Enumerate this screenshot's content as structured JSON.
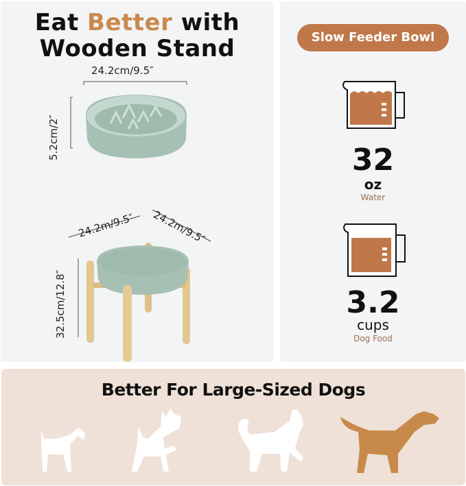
{
  "left_panel": {
    "title_part1": "Eat ",
    "title_highlight": "Better",
    "title_part2": " with",
    "title_line2": "Wooden Stand",
    "bowl_width": "24.2cm/9.5″",
    "bowl_height": "5.2cm/2″",
    "stand_width": "24.2m/9.5″",
    "stand_depth": "24.2m/9.5″",
    "stand_height": "32.5cm/12.8″"
  },
  "right_panel": {
    "badge": "Slow Feeder Bowl",
    "water": {
      "value": "32",
      "unit": "oz",
      "label": "Water"
    },
    "food": {
      "value": "3.2",
      "unit": "cups",
      "label": "Dog Food"
    }
  },
  "bottom_panel": {
    "title": "Better For Large-Sized Dogs",
    "dogs": [
      "small",
      "medium",
      "large-medium",
      "large"
    ],
    "highlighted_dog": "large"
  },
  "colors": {
    "accent": "#c0784a",
    "highlight_text": "#c98a4e",
    "panel": "#f3f4f6",
    "bottom_bg": "#efe1d7",
    "bowl": "#a9c3b6",
    "wood": "#e3c790",
    "large_dog": "#c88a4a"
  }
}
